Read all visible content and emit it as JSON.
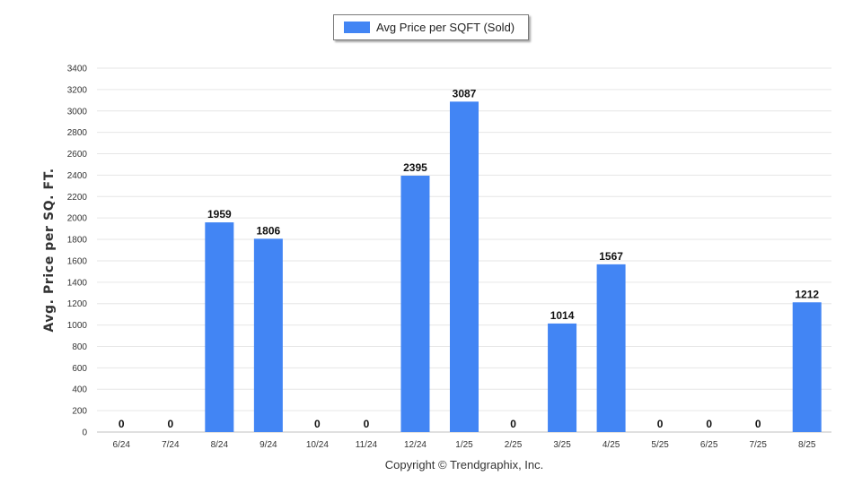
{
  "legend": {
    "label": "Avg Price per SQFT (Sold)",
    "color": "#4285f4"
  },
  "copyright": "Copyright © Trendgraphix, Inc.",
  "chart_data": {
    "type": "bar",
    "ylabel": "Avg. Price per SQ. FT.",
    "xlabel": "",
    "ylim": [
      0,
      3400
    ],
    "yticks": [
      0,
      200,
      400,
      600,
      800,
      1000,
      1200,
      1400,
      1600,
      1800,
      2000,
      2200,
      2400,
      2600,
      2800,
      3000,
      3200,
      3400
    ],
    "grid": true,
    "legend_position": "top-center",
    "categories": [
      "6/24",
      "7/24",
      "8/24",
      "9/24",
      "10/24",
      "11/24",
      "12/24",
      "1/25",
      "2/25",
      "3/25",
      "4/25",
      "5/25",
      "6/25",
      "7/25",
      "8/25"
    ],
    "series": [
      {
        "name": "Avg Price per SQFT (Sold)",
        "color": "#4285f4",
        "values": [
          0,
          0,
          1959,
          1806,
          0,
          0,
          2395,
          3087,
          0,
          1014,
          1567,
          0,
          0,
          0,
          1212
        ]
      }
    ]
  }
}
